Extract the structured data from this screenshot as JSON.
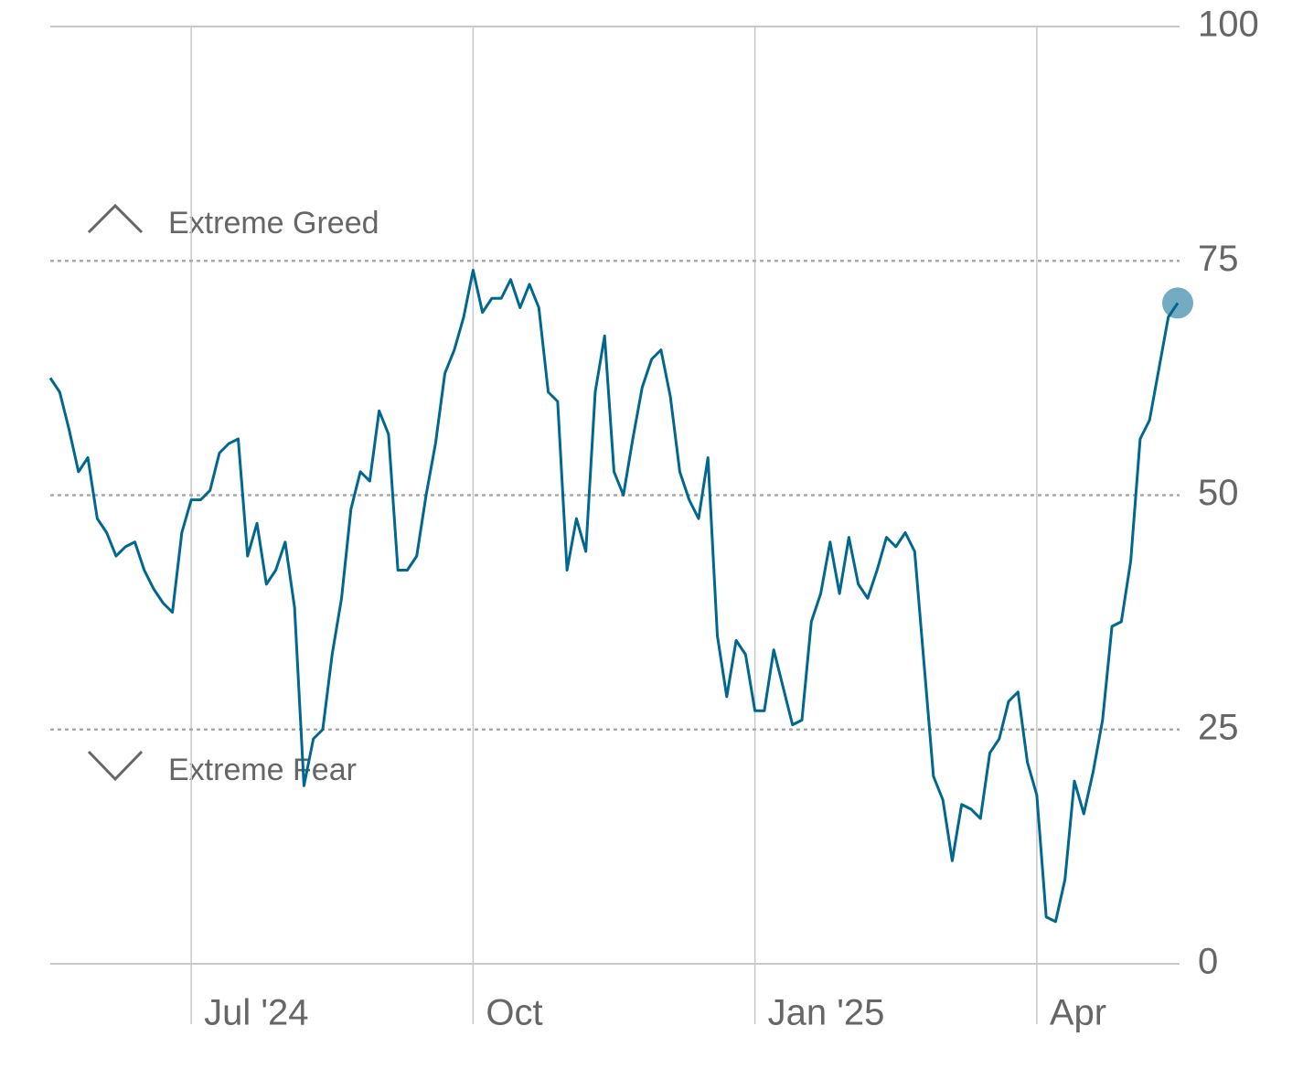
{
  "chart_data": {
    "type": "line",
    "annotations": [
      "Extreme Greed",
      "Extreme Fear"
    ],
    "categories": [
      null,
      null,
      null,
      null,
      null,
      null,
      null,
      null,
      null,
      null,
      null,
      null,
      null,
      null,
      null,
      "Jul '24",
      null,
      null,
      null,
      null,
      null,
      null,
      null,
      null,
      null,
      null,
      null,
      null,
      null,
      null,
      null,
      null,
      null,
      null,
      null,
      null,
      null,
      null,
      null,
      null,
      null,
      null,
      null,
      null,
      null,
      "Oct",
      null,
      null,
      null,
      null,
      null,
      null,
      null,
      null,
      null,
      null,
      null,
      null,
      null,
      null,
      null,
      null,
      null,
      null,
      null,
      null,
      null,
      null,
      null,
      null,
      null,
      null,
      null,
      null,
      null,
      "Jan '25",
      null,
      null,
      null,
      null,
      null,
      null,
      null,
      null,
      null,
      null,
      null,
      null,
      null,
      null,
      null,
      null,
      null,
      null,
      null,
      null,
      null,
      null,
      null,
      null,
      null,
      null,
      null,
      null,
      null,
      "Apr",
      null,
      null,
      null,
      null,
      null,
      null,
      null,
      null,
      null,
      null,
      null,
      null,
      null,
      null,
      null
    ],
    "series": [
      {
        "color": "#00678f",
        "values": [
          62.5,
          61,
          57,
          52.5,
          54,
          47.5,
          46,
          43.5,
          44.5,
          45,
          42,
          40,
          38.5,
          37.5,
          46,
          49.5,
          49.5,
          50.5,
          54.5,
          55.5,
          56,
          43.5,
          47,
          40.5,
          42,
          45,
          38,
          19,
          24,
          25,
          33,
          39,
          48.5,
          52.5,
          51.5,
          59,
          56.5,
          42,
          42,
          43.5,
          50,
          55.5,
          63,
          65.5,
          69,
          74,
          69.5,
          71,
          71,
          73,
          70,
          72.5,
          70,
          61,
          60,
          42,
          47.5,
          44,
          61,
          67,
          52.5,
          50,
          56,
          61.5,
          64.5,
          65.5,
          60.5,
          52.5,
          49.5,
          47.5,
          54,
          35,
          28.5,
          34.5,
          33,
          27,
          27,
          33.5,
          29.5,
          25.5,
          26,
          36.5,
          39.5,
          45,
          39.5,
          45.5,
          40.5,
          39,
          42,
          45.5,
          44.5,
          46,
          44,
          32,
          20,
          17.5,
          11,
          17,
          16.5,
          15.5,
          22.5,
          24,
          28,
          29,
          21.5,
          18,
          5,
          4.5,
          9,
          19.5,
          16,
          20.5,
          26,
          36,
          36.5,
          43,
          56,
          58,
          63.5,
          69,
          70.5
        ]
      }
    ],
    "ylim": [
      0,
      100
    ],
    "yticks": [
      0,
      25,
      50,
      75,
      100
    ],
    "grid": true
  }
}
